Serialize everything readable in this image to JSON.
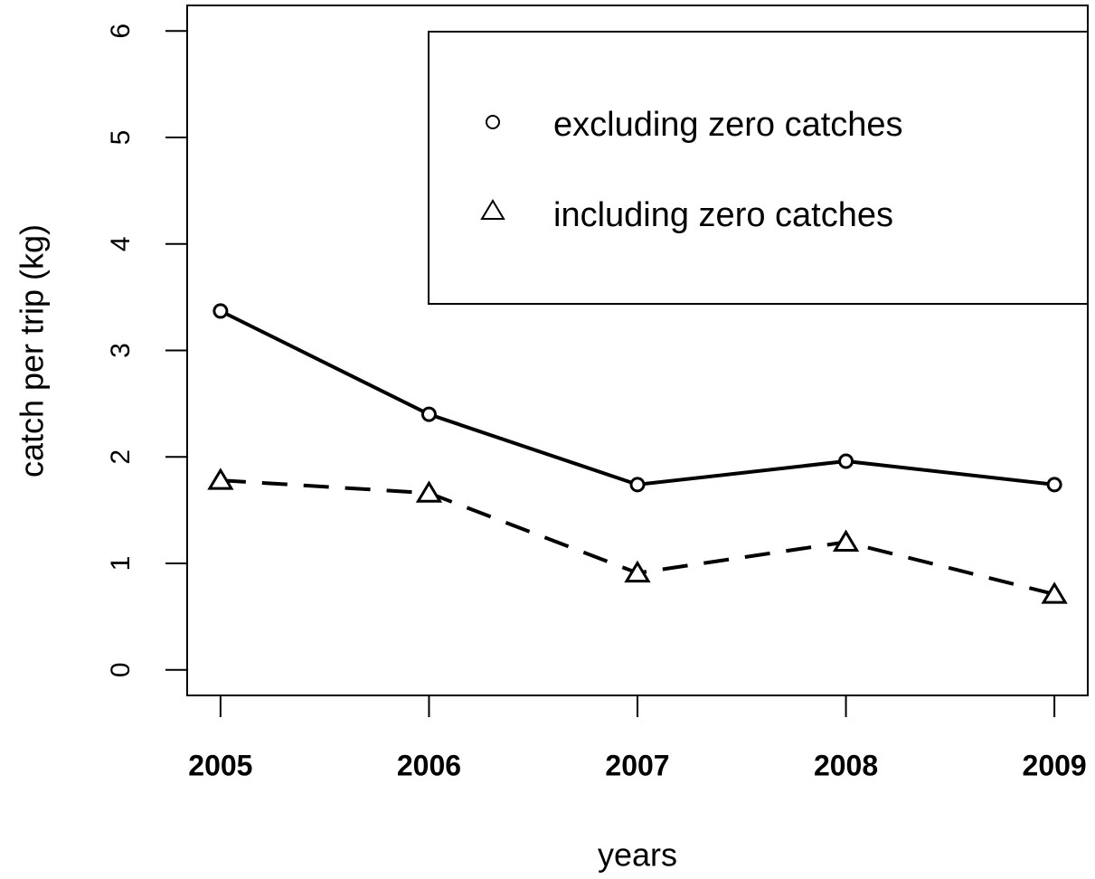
{
  "chart_data": {
    "type": "line",
    "x": [
      2005,
      2006,
      2007,
      2008,
      2009
    ],
    "xlim": [
      2004.84,
      2009.16
    ],
    "xticks": [
      2005,
      2006,
      2007,
      2008,
      2009
    ],
    "ylim": [
      -0.24,
      6.24
    ],
    "yticks": [
      0,
      1,
      2,
      3,
      4,
      5,
      6
    ],
    "xlabel": "years",
    "ylabel": "catch per trip (kg)",
    "legend": "top-right",
    "grid": false,
    "series": [
      {
        "name": "excluding zero catches",
        "color": "#000000",
        "linestyle": "solid",
        "marker": "circle",
        "values": [
          3.37,
          2.4,
          1.74,
          1.96,
          1.74
        ]
      },
      {
        "name": "including zero catches",
        "color": "#000000",
        "linestyle": "dashed",
        "marker": "triangle",
        "values": [
          1.78,
          1.66,
          0.91,
          1.2,
          0.71
        ]
      }
    ]
  }
}
